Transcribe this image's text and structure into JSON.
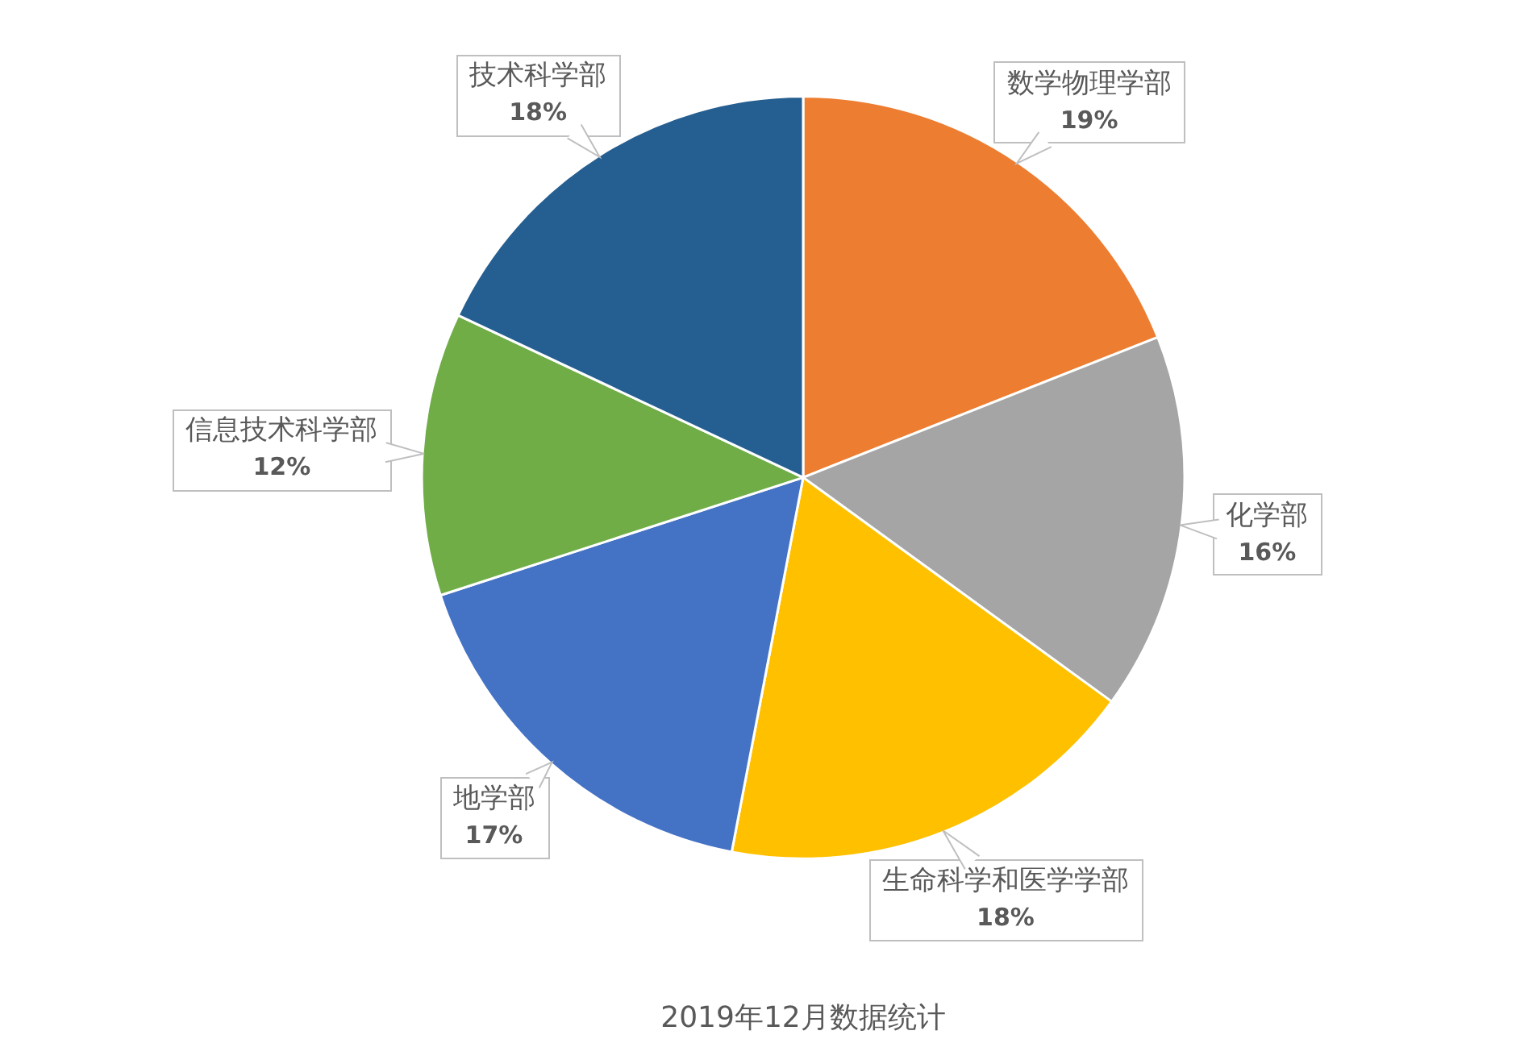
{
  "chart_data": {
    "type": "pie",
    "title": "2019年12月数据统计",
    "categories": [
      "数学物理学部",
      "化学部",
      "生命科学和医学学部",
      "地学部",
      "信息技术科学部",
      "技术科学部"
    ],
    "values": [
      19,
      16,
      18,
      17,
      12,
      18
    ],
    "value_labels": [
      "19%",
      "16%",
      "18%",
      "17%",
      "12%",
      "18%"
    ],
    "colors": [
      "#ed7d31",
      "#a5a5a5",
      "#ffc000",
      "#4472c4",
      "#70ad47",
      "#255e91"
    ]
  }
}
